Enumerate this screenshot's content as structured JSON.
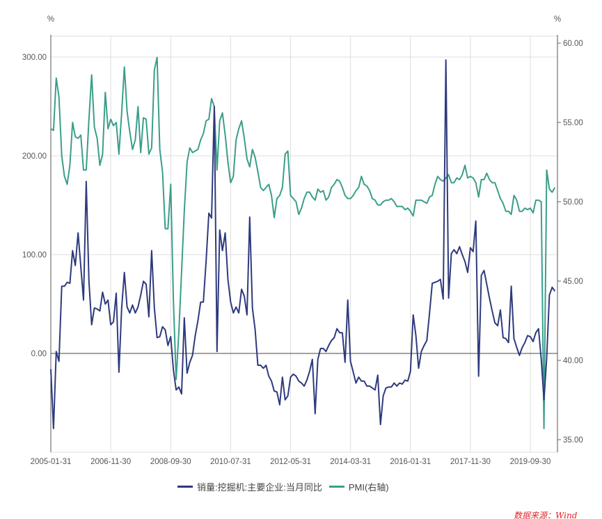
{
  "chart_data": {
    "type": "line",
    "left_unit": "%",
    "right_unit": "%",
    "left_ylim": [
      -100,
      300
    ],
    "left_ticks": [
      "300.00",
      "200.00",
      "100.00",
      "0.00"
    ],
    "right_ylim": [
      35,
      60
    ],
    "right_ticks": [
      "60.00",
      "55.00",
      "50.00",
      "45.00",
      "40.00",
      "35.00"
    ],
    "x_ticks": [
      "2005-01-31",
      "2006-11-30",
      "2008-09-30",
      "2010-07-31",
      "2012-05-31",
      "2014-03-31",
      "2016-01-31",
      "2017-11-30",
      "2019-09-30"
    ],
    "grid": true,
    "legend_position": "bottom",
    "x": [
      "2005-01",
      "2005-02",
      "2005-03",
      "2005-04",
      "2005-05",
      "2005-06",
      "2005-07",
      "2005-08",
      "2005-09",
      "2005-10",
      "2005-11",
      "2005-12",
      "2006-01",
      "2006-02",
      "2006-03",
      "2006-04",
      "2006-05",
      "2006-06",
      "2006-07",
      "2006-08",
      "2006-09",
      "2006-10",
      "2006-11",
      "2006-12",
      "2007-01",
      "2007-02",
      "2007-03",
      "2007-04",
      "2007-05",
      "2007-06",
      "2007-07",
      "2007-08",
      "2007-09",
      "2007-10",
      "2007-11",
      "2007-12",
      "2008-01",
      "2008-02",
      "2008-03",
      "2008-04",
      "2008-05",
      "2008-06",
      "2008-07",
      "2008-08",
      "2008-09",
      "2008-10",
      "2008-11",
      "2008-12",
      "2009-01",
      "2009-02",
      "2009-03",
      "2009-04",
      "2009-05",
      "2009-06",
      "2009-07",
      "2009-08",
      "2009-09",
      "2009-10",
      "2009-11",
      "2009-12",
      "2010-01",
      "2010-02",
      "2010-03",
      "2010-04",
      "2010-05",
      "2010-06",
      "2010-07",
      "2010-08",
      "2010-09",
      "2010-10",
      "2010-11",
      "2010-12",
      "2011-01",
      "2011-02",
      "2011-03",
      "2011-04",
      "2011-05",
      "2011-06",
      "2011-07",
      "2011-08",
      "2011-09",
      "2011-10",
      "2011-11",
      "2011-12",
      "2012-01",
      "2012-02",
      "2012-03",
      "2012-04",
      "2012-05",
      "2012-06",
      "2012-07",
      "2012-08",
      "2012-09",
      "2012-10",
      "2012-11",
      "2012-12",
      "2013-01",
      "2013-02",
      "2013-03",
      "2013-04",
      "2013-05",
      "2013-06",
      "2013-07",
      "2013-08",
      "2013-09",
      "2013-10",
      "2013-11",
      "2013-12",
      "2014-01",
      "2014-02",
      "2014-03",
      "2014-04",
      "2014-05",
      "2014-06",
      "2014-07",
      "2014-08",
      "2014-09",
      "2014-10",
      "2014-11",
      "2014-12",
      "2015-01",
      "2015-02",
      "2015-03",
      "2015-04",
      "2015-05",
      "2015-06",
      "2015-07",
      "2015-08",
      "2015-09",
      "2015-10",
      "2015-11",
      "2015-12",
      "2016-01",
      "2016-02",
      "2016-03",
      "2016-04",
      "2016-05",
      "2016-06",
      "2016-07",
      "2016-08",
      "2016-09",
      "2016-10",
      "2016-11",
      "2016-12",
      "2017-01",
      "2017-02",
      "2017-03",
      "2017-04",
      "2017-05",
      "2017-06",
      "2017-07",
      "2017-08",
      "2017-09",
      "2017-10",
      "2017-11",
      "2017-12",
      "2018-01",
      "2018-02",
      "2018-03",
      "2018-04",
      "2018-05",
      "2018-06",
      "2018-07",
      "2018-08",
      "2018-09",
      "2018-10",
      "2018-11",
      "2018-12",
      "2019-01",
      "2019-02",
      "2019-03",
      "2019-04",
      "2019-05",
      "2019-06",
      "2019-07",
      "2019-08",
      "2019-09",
      "2019-10",
      "2019-11",
      "2019-12",
      "2020-01",
      "2020-02",
      "2020-03",
      "2020-04",
      "2020-05",
      "2020-06"
    ],
    "series": [
      {
        "name": "销量:挖掘机:主要企业:当月同比",
        "axis": "left",
        "color": "#2e3a7c",
        "values": [
          -16,
          -76,
          2,
          -8,
          68,
          68,
          72,
          71,
          104,
          89,
          122,
          88,
          54,
          174,
          73,
          29,
          46,
          45,
          43,
          62,
          50,
          54,
          29,
          32,
          61,
          -19,
          46,
          82,
          47,
          41,
          49,
          41,
          47,
          59,
          73,
          70,
          37,
          104,
          46,
          16,
          17,
          27,
          24,
          8,
          17,
          -17,
          -37,
          -34,
          -41,
          36,
          -20,
          -9,
          -2,
          18,
          33,
          52,
          52,
          94,
          142,
          137,
          250,
          2,
          125,
          104,
          122,
          75,
          52,
          41,
          47,
          41,
          65,
          58,
          39,
          138,
          46,
          24,
          -12,
          -12,
          -15,
          -12,
          -23,
          -28,
          -38,
          -39,
          -52,
          -24,
          -47,
          -43,
          -24,
          -21,
          -23,
          -28,
          -30,
          -33,
          -27,
          -18,
          -6,
          -61,
          -6,
          5,
          5,
          2,
          8,
          13,
          16,
          25,
          21,
          21,
          -9,
          54,
          -8,
          -19,
          -30,
          -24,
          -28,
          -28,
          -33,
          -33,
          -35,
          -37,
          -22,
          -72,
          -43,
          -35,
          -34,
          -34,
          -30,
          -33,
          -30,
          -31,
          -27,
          -28,
          -18,
          39,
          18,
          -15,
          2,
          8,
          13,
          41,
          71,
          72,
          73,
          75,
          55,
          297,
          56,
          101,
          105,
          101,
          108,
          100,
          93,
          82,
          107,
          103,
          134,
          -23,
          79,
          84,
          70,
          56,
          43,
          31,
          28,
          44,
          16,
          15,
          11,
          68,
          15,
          6,
          -2,
          6,
          11,
          18,
          17,
          12,
          21,
          25,
          -6,
          -47,
          -5,
          59,
          67,
          63
        ]
      },
      {
        "name": "PMI(右轴)",
        "axis": "right",
        "color": "#3a9e8a",
        "values": [
          54.6,
          54.5,
          57.8,
          56.6,
          52.9,
          51.6,
          51.1,
          52.3,
          55.0,
          54.1,
          54.0,
          54.2,
          52.0,
          52.0,
          55.2,
          58.0,
          54.7,
          54.0,
          52.3,
          53.0,
          56.9,
          54.6,
          55.2,
          54.8,
          55.0,
          53.0,
          55.6,
          58.5,
          55.7,
          54.4,
          53.3,
          53.9,
          56.0,
          53.1,
          55.3,
          55.2,
          53.0,
          53.4,
          58.3,
          59.1,
          53.3,
          51.9,
          48.3,
          48.3,
          51.1,
          43.7,
          38.8,
          41.8,
          45.6,
          49.4,
          52.5,
          53.4,
          53.1,
          53.2,
          53.3,
          53.9,
          54.3,
          55.1,
          55.2,
          56.5,
          56.0,
          52.0,
          55.1,
          55.6,
          54.2,
          52.5,
          51.2,
          51.6,
          53.9,
          54.6,
          55.1,
          54.0,
          52.7,
          52.2,
          53.3,
          52.8,
          51.9,
          50.9,
          50.7,
          50.9,
          51.1,
          50.4,
          49.0,
          50.2,
          50.4,
          50.9,
          53.0,
          53.2,
          50.4,
          50.2,
          50.0,
          49.2,
          49.6,
          50.2,
          50.6,
          50.6,
          50.3,
          50.1,
          50.8,
          50.6,
          50.7,
          50.1,
          50.3,
          50.9,
          51.1,
          51.4,
          51.3,
          50.9,
          50.4,
          50.2,
          50.2,
          50.4,
          50.7,
          50.9,
          51.6,
          51.1,
          51.0,
          50.7,
          50.2,
          50.1,
          49.8,
          49.8,
          50.0,
          50.1,
          50.1,
          50.2,
          50.0,
          49.7,
          49.7,
          49.7,
          49.5,
          49.6,
          49.4,
          49.1,
          50.1,
          50.1,
          50.1,
          50.0,
          49.9,
          50.3,
          50.4,
          51.1,
          51.6,
          51.4,
          51.3,
          51.5,
          51.7,
          51.2,
          51.2,
          51.5,
          51.4,
          51.7,
          52.3,
          51.5,
          51.6,
          51.5,
          51.2,
          50.3,
          51.4,
          51.4,
          51.8,
          51.4,
          51.2,
          51.2,
          50.7,
          50.2,
          49.9,
          49.4,
          49.4,
          49.2,
          50.4,
          50.1,
          49.4,
          49.4,
          49.6,
          49.5,
          49.6,
          49.3,
          50.1,
          50.1,
          50.0,
          35.7,
          52.0,
          50.8,
          50.6,
          50.9
        ]
      }
    ]
  },
  "source": "数据来源：Wind"
}
